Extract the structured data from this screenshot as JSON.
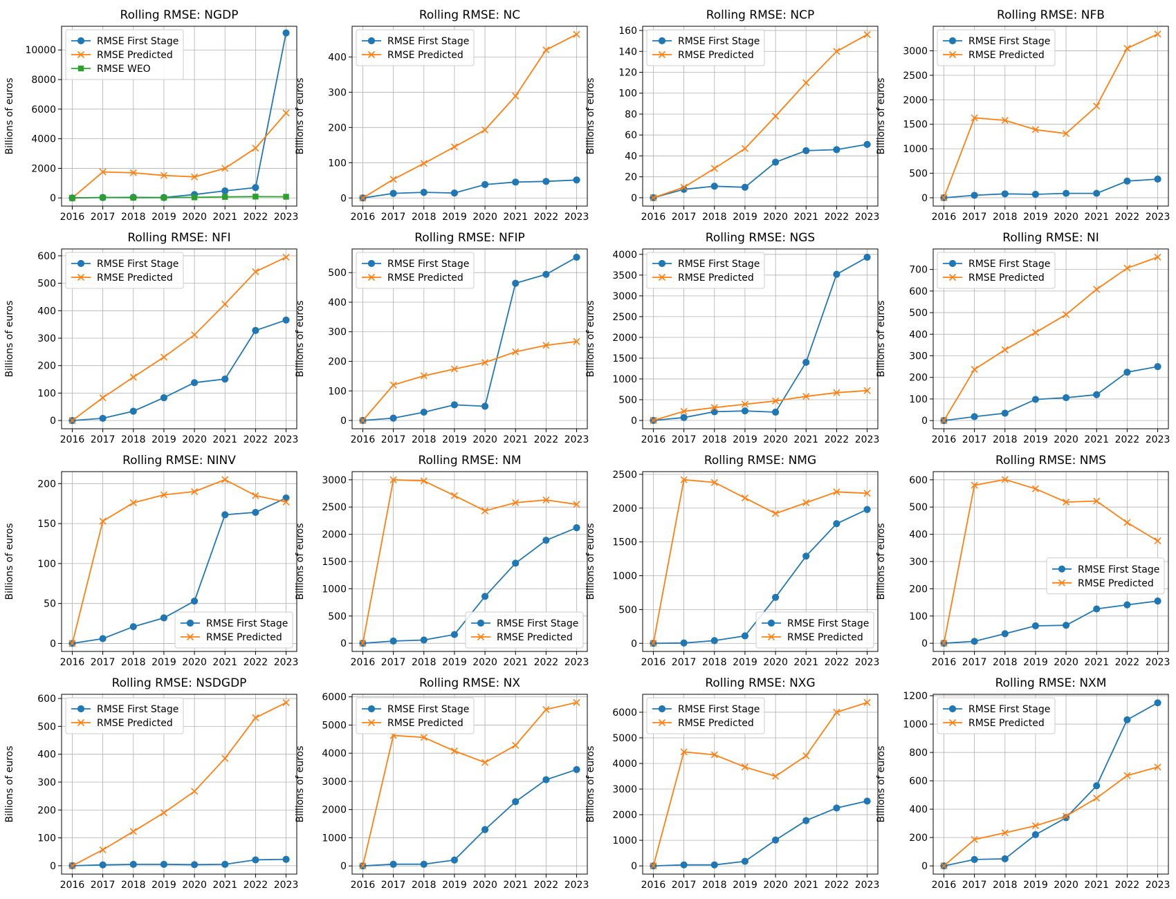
{
  "colors": {
    "first_stage": "#1f77b4",
    "predicted": "#ff7f0e",
    "weo": "#2ca02c",
    "grid": "#b0b0b0",
    "axis": "#000000"
  },
  "chart_data": [
    {
      "type": "line",
      "title": "Rolling RMSE: NGDP",
      "ylabel": "Billions of euros",
      "x": [
        2016,
        2017,
        2018,
        2019,
        2020,
        2021,
        2022,
        2023
      ],
      "ylim": [
        -550,
        11600
      ],
      "yticks": [
        0,
        2000,
        4000,
        6000,
        8000,
        10000
      ],
      "grid": true,
      "legend": "upper-left",
      "series": [
        {
          "name": "RMSE First Stage",
          "marker": "circle",
          "values": [
            0,
            30,
            40,
            30,
            230,
            480,
            700,
            11150
          ]
        },
        {
          "name": "RMSE Predicted",
          "marker": "x",
          "values": [
            0,
            1760,
            1700,
            1520,
            1420,
            2000,
            3360,
            5740
          ]
        },
        {
          "name": "RMSE WEO",
          "marker": "square",
          "values": [
            0,
            30,
            20,
            20,
            40,
            70,
            90,
            80
          ]
        }
      ]
    },
    {
      "type": "line",
      "title": "Rolling RMSE: NC",
      "ylabel": "Billions of euros",
      "x": [
        2016,
        2017,
        2018,
        2019,
        2020,
        2021,
        2022,
        2023
      ],
      "ylim": [
        -23,
        487
      ],
      "yticks": [
        0,
        100,
        200,
        300,
        400
      ],
      "grid": true,
      "legend": "upper-left",
      "series": [
        {
          "name": "RMSE First Stage",
          "marker": "circle",
          "values": [
            0,
            13,
            16,
            14,
            38,
            45,
            47,
            51
          ]
        },
        {
          "name": "RMSE Predicted",
          "marker": "x",
          "values": [
            0,
            53,
            98,
            145,
            193,
            289,
            420,
            464
          ]
        }
      ]
    },
    {
      "type": "line",
      "title": "Rolling RMSE: NCP",
      "ylabel": "Billions of euros",
      "x": [
        2016,
        2017,
        2018,
        2019,
        2020,
        2021,
        2022,
        2023
      ],
      "ylim": [
        -8,
        164
      ],
      "yticks": [
        0,
        20,
        40,
        60,
        80,
        100,
        120,
        140,
        160
      ],
      "grid": true,
      "legend": "upper-left",
      "series": [
        {
          "name": "RMSE First Stage",
          "marker": "circle",
          "values": [
            0,
            8,
            11,
            10,
            34,
            45,
            46,
            51
          ]
        },
        {
          "name": "RMSE Predicted",
          "marker": "x",
          "values": [
            0,
            10,
            28,
            47,
            78,
            110,
            140,
            156
          ]
        }
      ]
    },
    {
      "type": "line",
      "title": "Rolling RMSE: NFB",
      "ylabel": "Billions of euros",
      "x": [
        2016,
        2017,
        2018,
        2019,
        2020,
        2021,
        2022,
        2023
      ],
      "ylim": [
        -170,
        3500
      ],
      "yticks": [
        0,
        500,
        1000,
        1500,
        2000,
        2500,
        3000
      ],
      "grid": true,
      "legend": "upper-left",
      "series": [
        {
          "name": "RMSE First Stage",
          "marker": "circle",
          "values": [
            0,
            50,
            80,
            70,
            90,
            90,
            340,
            380
          ]
        },
        {
          "name": "RMSE Predicted",
          "marker": "x",
          "values": [
            0,
            1630,
            1580,
            1390,
            1310,
            1870,
            3050,
            3340
          ]
        }
      ]
    },
    {
      "type": "line",
      "title": "Rolling RMSE: NFI",
      "ylabel": "Billions of euros",
      "x": [
        2016,
        2017,
        2018,
        2019,
        2020,
        2021,
        2022,
        2023
      ],
      "ylim": [
        -30,
        625
      ],
      "yticks": [
        0,
        100,
        200,
        300,
        400,
        500,
        600
      ],
      "grid": true,
      "legend": "upper-left",
      "series": [
        {
          "name": "RMSE First Stage",
          "marker": "circle",
          "values": [
            0,
            8,
            34,
            83,
            138,
            151,
            328,
            366
          ]
        },
        {
          "name": "RMSE Predicted",
          "marker": "x",
          "values": [
            0,
            83,
            158,
            231,
            312,
            424,
            542,
            595
          ]
        }
      ]
    },
    {
      "type": "line",
      "title": "Rolling RMSE: NFIP",
      "ylabel": "Billions of euros",
      "x": [
        2016,
        2017,
        2018,
        2019,
        2020,
        2021,
        2022,
        2023
      ],
      "ylim": [
        -28,
        580
      ],
      "yticks": [
        0,
        100,
        200,
        300,
        400,
        500
      ],
      "grid": true,
      "legend": "upper-left",
      "series": [
        {
          "name": "RMSE First Stage",
          "marker": "circle",
          "values": [
            0,
            8,
            28,
            53,
            48,
            464,
            494,
            552
          ]
        },
        {
          "name": "RMSE Predicted",
          "marker": "x",
          "values": [
            0,
            120,
            151,
            174,
            196,
            232,
            254,
            267
          ]
        }
      ]
    },
    {
      "type": "line",
      "title": "Rolling RMSE: NGS",
      "ylabel": "Billions of euros",
      "x": [
        2016,
        2017,
        2018,
        2019,
        2020,
        2021,
        2022,
        2023
      ],
      "ylim": [
        -200,
        4130
      ],
      "yticks": [
        0,
        500,
        1000,
        1500,
        2000,
        2500,
        3000,
        3500,
        4000
      ],
      "grid": true,
      "legend": "upper-left",
      "series": [
        {
          "name": "RMSE First Stage",
          "marker": "circle",
          "values": [
            0,
            70,
            210,
            230,
            200,
            1400,
            3520,
            3930
          ]
        },
        {
          "name": "RMSE Predicted",
          "marker": "x",
          "values": [
            0,
            220,
            310,
            390,
            470,
            580,
            670,
            720
          ]
        }
      ]
    },
    {
      "type": "line",
      "title": "Rolling RMSE: NI",
      "ylabel": "Billions of euros",
      "x": [
        2016,
        2017,
        2018,
        2019,
        2020,
        2021,
        2022,
        2023
      ],
      "ylim": [
        -38,
        795
      ],
      "yticks": [
        0,
        100,
        200,
        300,
        400,
        500,
        600,
        700
      ],
      "grid": true,
      "legend": "upper-left",
      "series": [
        {
          "name": "RMSE First Stage",
          "marker": "circle",
          "values": [
            0,
            18,
            34,
            98,
            106,
            120,
            224,
            250
          ]
        },
        {
          "name": "RMSE Predicted",
          "marker": "x",
          "values": [
            0,
            237,
            328,
            408,
            491,
            608,
            706,
            757
          ]
        }
      ]
    },
    {
      "type": "line",
      "title": "Rolling RMSE: NINV",
      "ylabel": "Billions of euros",
      "x": [
        2016,
        2017,
        2018,
        2019,
        2020,
        2021,
        2022,
        2023
      ],
      "ylim": [
        -10,
        215
      ],
      "yticks": [
        0,
        50,
        100,
        150,
        200
      ],
      "grid": true,
      "legend": "lower-right",
      "series": [
        {
          "name": "RMSE First Stage",
          "marker": "circle",
          "values": [
            0,
            6,
            21,
            32,
            53,
            161,
            164,
            182
          ]
        },
        {
          "name": "RMSE Predicted",
          "marker": "x",
          "values": [
            0,
            153,
            176,
            186,
            190,
            205,
            185,
            177
          ]
        }
      ]
    },
    {
      "type": "line",
      "title": "Rolling RMSE: NM",
      "ylabel": "Billions of euros",
      "x": [
        2016,
        2017,
        2018,
        2019,
        2020,
        2021,
        2022,
        2023
      ],
      "ylim": [
        -150,
        3150
      ],
      "yticks": [
        0,
        500,
        1000,
        1500,
        2000,
        2500,
        3000
      ],
      "grid": true,
      "legend": "lower-right",
      "series": [
        {
          "name": "RMSE First Stage",
          "marker": "circle",
          "values": [
            0,
            40,
            60,
            160,
            860,
            1470,
            1890,
            2120
          ]
        },
        {
          "name": "RMSE Predicted",
          "marker": "x",
          "values": [
            0,
            3000,
            2980,
            2710,
            2430,
            2580,
            2630,
            2550
          ]
        }
      ]
    },
    {
      "type": "line",
      "title": "Rolling RMSE: NMG",
      "ylabel": "Billions of euros",
      "x": [
        2016,
        2017,
        2018,
        2019,
        2020,
        2021,
        2022,
        2023
      ],
      "ylim": [
        -120,
        2540
      ],
      "yticks": [
        0,
        500,
        1000,
        1500,
        2000,
        2500
      ],
      "grid": true,
      "legend": "lower-right",
      "series": [
        {
          "name": "RMSE First Stage",
          "marker": "circle",
          "values": [
            0,
            5,
            40,
            110,
            680,
            1290,
            1770,
            1980
          ]
        },
        {
          "name": "RMSE Predicted",
          "marker": "x",
          "values": [
            0,
            2420,
            2380,
            2150,
            1920,
            2080,
            2240,
            2220
          ]
        }
      ]
    },
    {
      "type": "line",
      "title": "Rolling RMSE: NMS",
      "ylabel": "Billions of euros",
      "x": [
        2016,
        2017,
        2018,
        2019,
        2020,
        2021,
        2022,
        2023
      ],
      "ylim": [
        -30,
        630
      ],
      "yticks": [
        0,
        100,
        200,
        300,
        400,
        500,
        600
      ],
      "grid": true,
      "legend": "center-right",
      "series": [
        {
          "name": "RMSE First Stage",
          "marker": "circle",
          "values": [
            0,
            7,
            35,
            64,
            66,
            126,
            141,
            155
          ]
        },
        {
          "name": "RMSE Predicted",
          "marker": "x",
          "values": [
            0,
            580,
            601,
            567,
            518,
            522,
            443,
            376
          ]
        }
      ]
    },
    {
      "type": "line",
      "title": "Rolling RMSE: NSDGDP",
      "ylabel": "Billions of euros",
      "x": [
        2016,
        2017,
        2018,
        2019,
        2020,
        2021,
        2022,
        2023
      ],
      "ylim": [
        -30,
        615
      ],
      "yticks": [
        0,
        100,
        200,
        300,
        400,
        500,
        600
      ],
      "grid": true,
      "legend": "upper-left",
      "series": [
        {
          "name": "RMSE First Stage",
          "marker": "circle",
          "values": [
            0,
            3,
            5,
            5,
            4,
            5,
            21,
            23
          ]
        },
        {
          "name": "RMSE Predicted",
          "marker": "x",
          "values": [
            0,
            57,
            123,
            190,
            267,
            385,
            531,
            585
          ]
        }
      ]
    },
    {
      "type": "line",
      "title": "Rolling RMSE: NX",
      "ylabel": "Billions of euros",
      "x": [
        2016,
        2017,
        2018,
        2019,
        2020,
        2021,
        2022,
        2023
      ],
      "ylim": [
        -290,
        6090
      ],
      "yticks": [
        0,
        1000,
        2000,
        3000,
        4000,
        5000,
        6000
      ],
      "grid": true,
      "legend": "upper-left",
      "series": [
        {
          "name": "RMSE First Stage",
          "marker": "circle",
          "values": [
            0,
            60,
            60,
            210,
            1290,
            2280,
            3060,
            3420
          ]
        },
        {
          "name": "RMSE Predicted",
          "marker": "x",
          "values": [
            0,
            4630,
            4560,
            4080,
            3670,
            4280,
            5550,
            5800
          ]
        }
      ]
    },
    {
      "type": "line",
      "title": "Rolling RMSE: NXG",
      "ylabel": "Billions of euros",
      "x": [
        2016,
        2017,
        2018,
        2019,
        2020,
        2021,
        2022,
        2023
      ],
      "ylim": [
        -320,
        6700
      ],
      "yticks": [
        0,
        1000,
        2000,
        3000,
        4000,
        5000,
        6000
      ],
      "grid": true,
      "legend": "upper-left",
      "series": [
        {
          "name": "RMSE First Stage",
          "marker": "circle",
          "values": [
            0,
            40,
            40,
            180,
            1010,
            1770,
            2260,
            2530
          ]
        },
        {
          "name": "RMSE Predicted",
          "marker": "x",
          "values": [
            0,
            4450,
            4340,
            3860,
            3500,
            4300,
            6000,
            6380
          ]
        }
      ]
    },
    {
      "type": "line",
      "title": "Rolling RMSE: NXM",
      "ylabel": "Billions of euros",
      "x": [
        2016,
        2017,
        2018,
        2019,
        2020,
        2021,
        2022,
        2023
      ],
      "ylim": [
        -58,
        1210
      ],
      "yticks": [
        0,
        200,
        400,
        600,
        800,
        1000,
        1200
      ],
      "grid": true,
      "legend": "upper-left",
      "series": [
        {
          "name": "RMSE First Stage",
          "marker": "circle",
          "values": [
            0,
            45,
            50,
            220,
            340,
            565,
            1030,
            1150
          ]
        },
        {
          "name": "RMSE Predicted",
          "marker": "x",
          "values": [
            0,
            186,
            233,
            283,
            350,
            478,
            637,
            697
          ]
        }
      ]
    }
  ]
}
